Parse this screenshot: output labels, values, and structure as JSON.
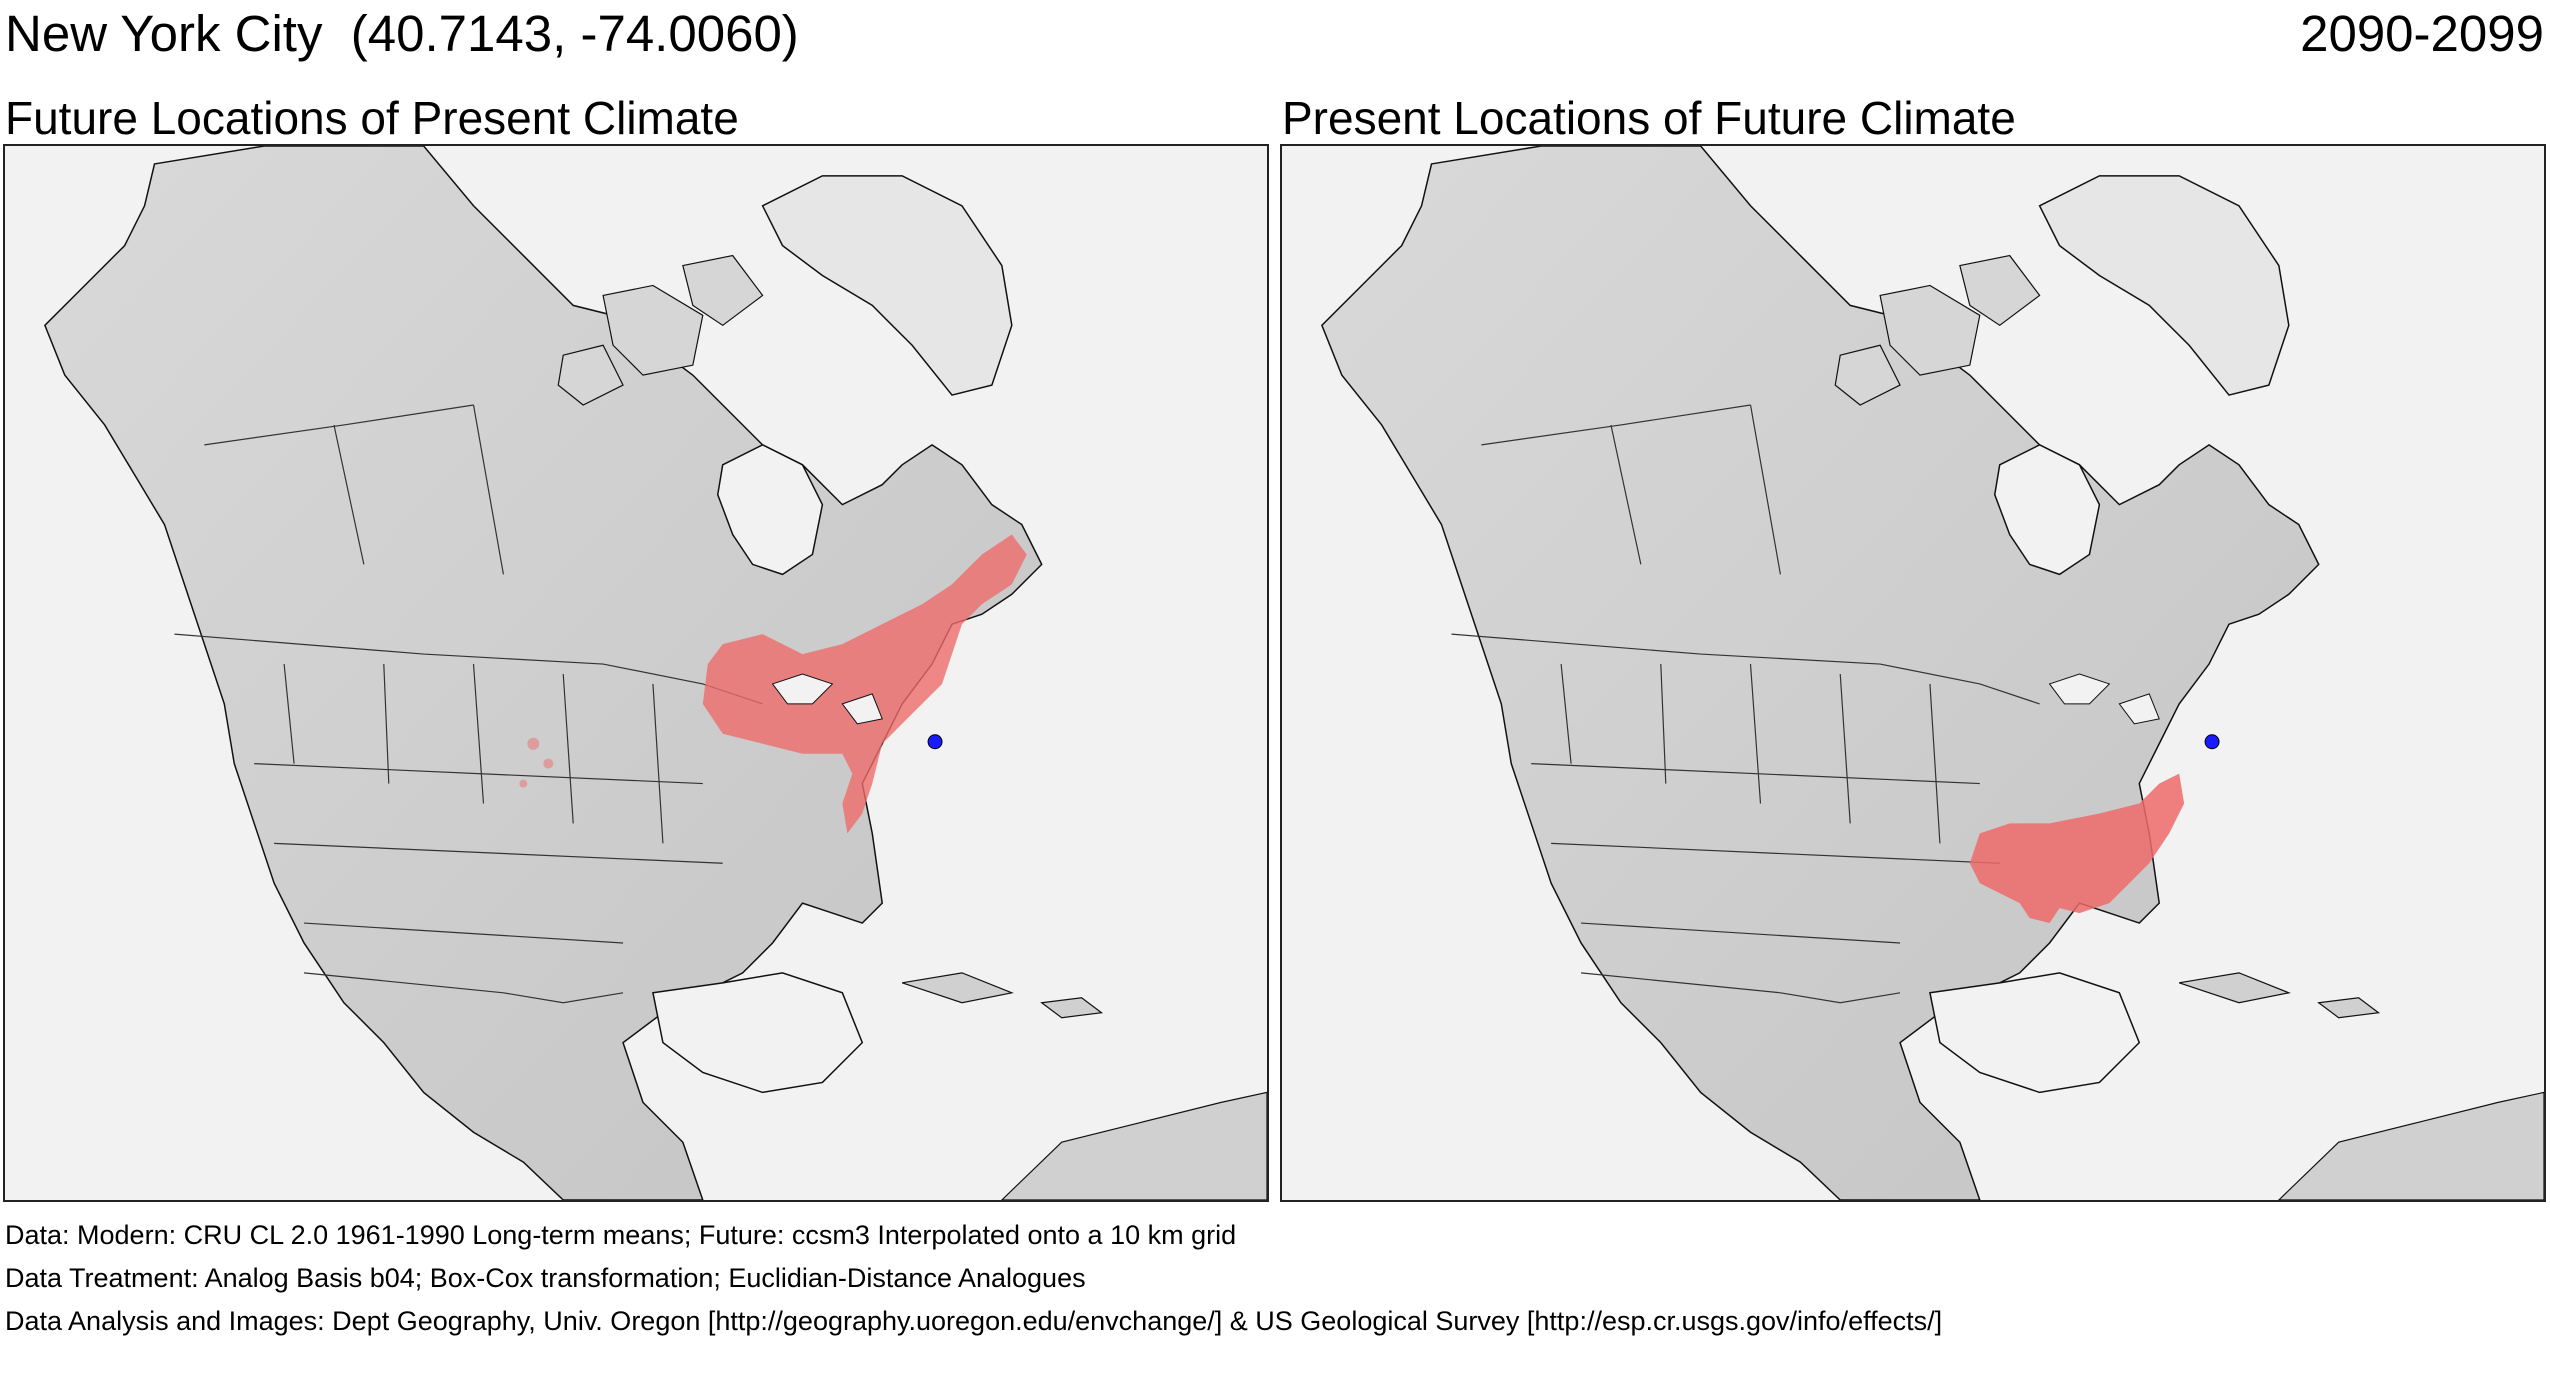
{
  "header": {
    "title": "New York City  (40.7143, -74.0060)",
    "period": "2090-2099"
  },
  "panels": [
    {
      "title": "Future Locations of Present Climate",
      "highlight_region": "Great Lakes and Northeast"
    },
    {
      "title": "Present Locations of Future Climate",
      "highlight_region": "Southeastern United States"
    }
  ],
  "location_marker_color": "#1a1aff",
  "highlight_color": "#ee6b6b",
  "land_color": "#cfcfcf",
  "ocean_color": "#f2f2f2",
  "footer": {
    "data_line": "Data:  Modern: CRU CL 2.0 1961-1990 Long-term means; Future: ccsm3 Interpolated onto a 10 km grid",
    "treatment_line": "Data Treatment:  Analog Basis b04; Box-Cox transformation; Euclidian-Distance Analogues",
    "analysis_line": "Data Analysis and Images:  Dept Geography, Univ. Oregon [http://geography.uoregon.edu/envchange/] & US Geological Survey [http://esp.cr.usgs.gov/info/effects/]"
  }
}
